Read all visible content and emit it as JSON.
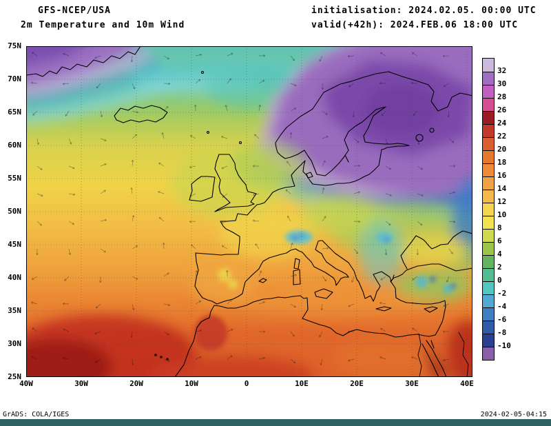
{
  "header": {
    "model": "GFS-NCEP/USA",
    "product": "2m Temperature and 10m Wind",
    "init_label": "initialisation: 2024.02.05. 00:00 UTC",
    "valid_label": "valid(+42h): 2024.FEB.06 18:00 UTC"
  },
  "map": {
    "lat_ticks": [
      "75N",
      "70N",
      "65N",
      "60N",
      "55N",
      "50N",
      "45N",
      "40N",
      "35N",
      "30N",
      "25N"
    ],
    "lon_ticks": [
      "40W",
      "30W",
      "20W",
      "10W",
      "0",
      "10E",
      "20E",
      "30E",
      "40E"
    ]
  },
  "colorbar": {
    "labels": [
      "32",
      "30",
      "28",
      "26",
      "24",
      "22",
      "20",
      "18",
      "16",
      "14",
      "12",
      "10",
      "8",
      "6",
      "4",
      "2",
      "0",
      "-2",
      "-4",
      "-6",
      "-8",
      "-10"
    ],
    "colors": [
      "#cdb9de",
      "#a06cc4",
      "#c45ec0",
      "#d44e93",
      "#9e1a23",
      "#c1392b",
      "#d95f30",
      "#e5772f",
      "#ec8c3a",
      "#f0a345",
      "#f3ba4b",
      "#f5d44e",
      "#f2e24f",
      "#cfd94e",
      "#9ec44c",
      "#63b45f",
      "#52bd92",
      "#54c6c0",
      "#54a8d4",
      "#3d7fc1",
      "#2f5ba8",
      "#28408f",
      "#8a5ea8"
    ]
  },
  "footer": {
    "credit": "GrADS: COLA/IGES",
    "timestamp": "2024-02-05-04:15"
  }
}
